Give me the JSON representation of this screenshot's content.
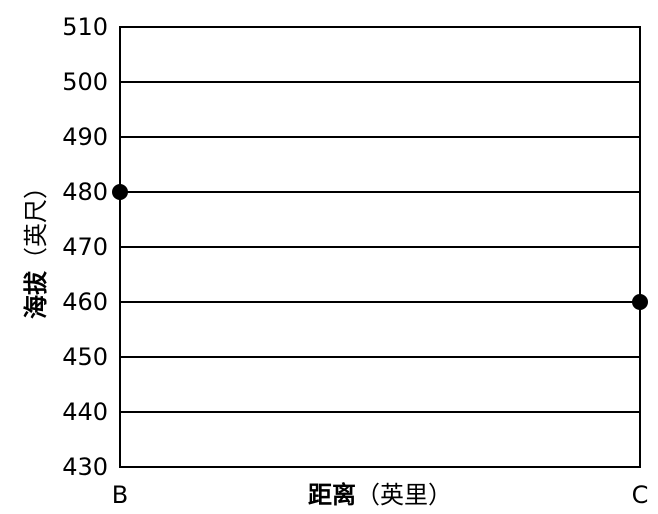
{
  "chart_data": {
    "type": "scatter",
    "title": "",
    "xlabel": {
      "bold": "距离",
      "normal": "（英里）"
    },
    "ylabel": {
      "bold": "海拔",
      "normal": "（英尺）"
    },
    "x_categories": [
      "B",
      "C"
    ],
    "ylim": [
      430,
      510
    ],
    "y_ticks": [
      430,
      440,
      450,
      460,
      470,
      480,
      490,
      500,
      510
    ],
    "grid": true,
    "points": [
      {
        "x": "B",
        "y": 480
      },
      {
        "x": "C",
        "y": 460
      }
    ]
  },
  "colors": {
    "line": "#000000",
    "marker": "#000000",
    "background": "#ffffff"
  }
}
